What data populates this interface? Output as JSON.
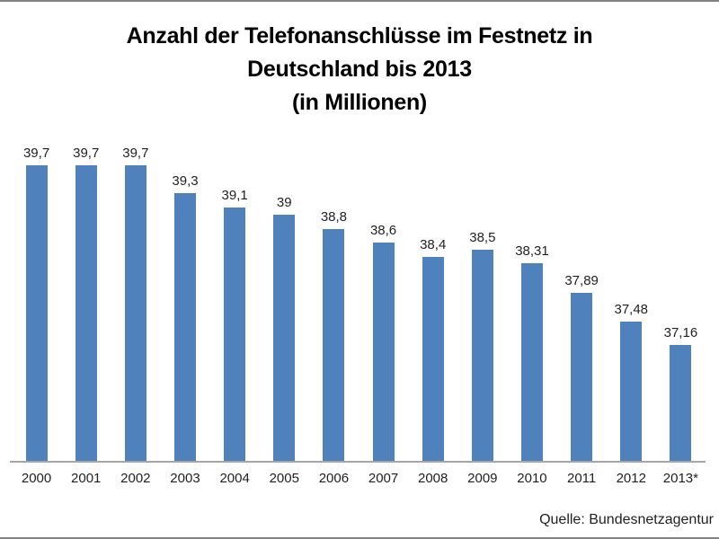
{
  "title_lines": [
    "Anzahl der Telefonanschlüsse im Festnetz in",
    "Deutschland bis 2013",
    "(in Millionen)"
  ],
  "source": "Quelle: Bundesnetzagentur",
  "chart_data": {
    "type": "bar",
    "title": "Anzahl der Telefonanschlüsse im Festnetz in Deutschland bis 2013 (in Millionen)",
    "categories": [
      "2000",
      "2001",
      "2002",
      "2003",
      "2004",
      "2005",
      "2006",
      "2007",
      "2008",
      "2009",
      "2010",
      "2011",
      "2012",
      "2013*"
    ],
    "values": [
      39.7,
      39.7,
      39.7,
      39.3,
      39.1,
      39,
      38.8,
      38.6,
      38.4,
      38.5,
      38.31,
      37.89,
      37.48,
      37.16
    ],
    "value_labels": [
      "39,7",
      "39,7",
      "39,7",
      "39,3",
      "39,1",
      "39",
      "38,8",
      "38,6",
      "38,4",
      "38,5",
      "38,31",
      "37,89",
      "37,48",
      "37,16"
    ],
    "xlabel": "",
    "ylabel": "",
    "ylim": [
      35.5,
      40
    ],
    "grid": false,
    "legend": false,
    "bar_color": "#4f81bd",
    "axis_color": "#a6a6a6",
    "source": "Quelle: Bundesnetzagentur"
  }
}
